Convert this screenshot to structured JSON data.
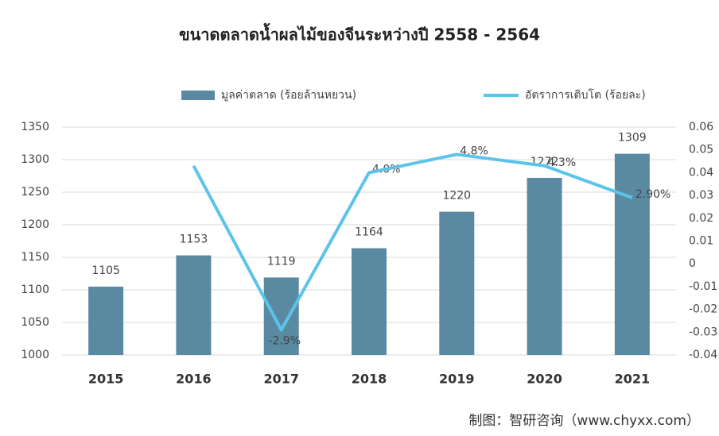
{
  "chart_data": {
    "type": "bar",
    "title": "ขนาดตลาดน้ำผลไม้ของจีนระหว่างปี 2558 - 2564",
    "categories": [
      "2015",
      "2016",
      "2017",
      "2018",
      "2019",
      "2020",
      "2021"
    ],
    "series": [
      {
        "name": "มูลค่าตลาด (ร้อยล้านหยวน)",
        "type": "bar",
        "color": "#5a8aa1",
        "values": [
          1105,
          1153,
          1119,
          1164,
          1220,
          1272,
          1309
        ]
      },
      {
        "name": "อัตราการเติบโต (ร้อยละ)",
        "type": "line",
        "axis": "y2",
        "color": "#5cc3ea",
        "values": [
          null,
          0.043,
          -0.029,
          0.04,
          0.048,
          0.043,
          0.029
        ],
        "value_labels": [
          null,
          null,
          "-2.9%",
          "4.0%",
          "4.8%",
          "4.3%",
          "2.90%"
        ]
      }
    ],
    "ylim": [
      1000,
      1350
    ],
    "yticks": [
      1000,
      1050,
      1100,
      1150,
      1200,
      1250,
      1300,
      1350
    ],
    "y2lim": [
      -0.04,
      0.06
    ],
    "y2ticks": [
      -0.04,
      -0.03,
      -0.02,
      -0.01,
      0,
      0.01,
      0.02,
      0.03,
      0.04,
      0.05,
      0.06
    ],
    "grid": true,
    "legend": "top",
    "source": "制图：智研咨询（www.chyxx.com）"
  }
}
